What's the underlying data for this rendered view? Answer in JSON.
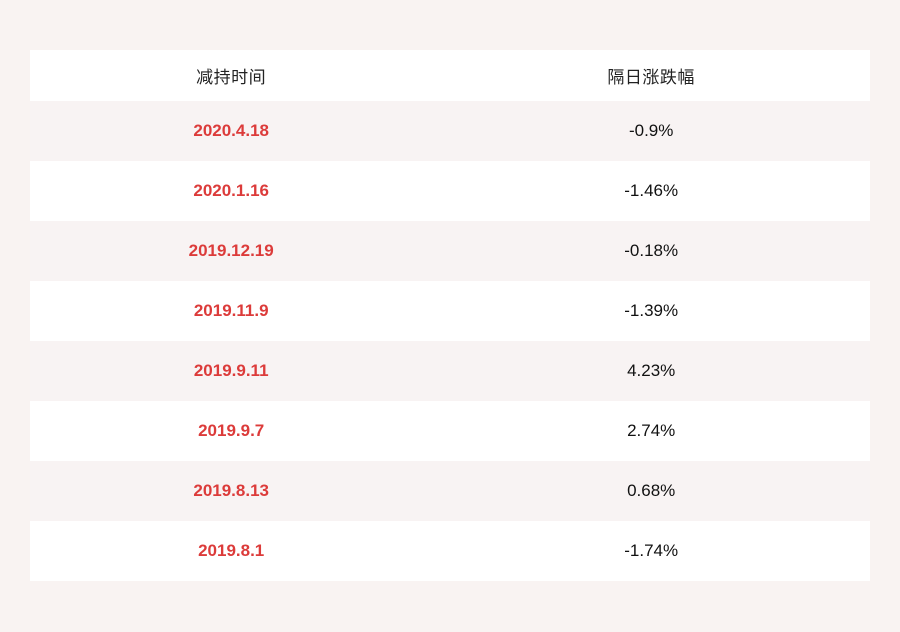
{
  "page": {
    "background": "#f9f3f2"
  },
  "table": {
    "columns": [
      {
        "key": "date",
        "label": "减持时间"
      },
      {
        "key": "change",
        "label": "隔日涨跌幅"
      }
    ],
    "rows": [
      {
        "date": "2020.4.18",
        "change": "-0.9%"
      },
      {
        "date": "2020.1.16",
        "change": "-1.46%"
      },
      {
        "date": "2019.12.19",
        "change": "-0.18%"
      },
      {
        "date": "2019.11.9",
        "change": "-1.39%"
      },
      {
        "date": "2019.9.11",
        "change": "4.23%"
      },
      {
        "date": "2019.9.7",
        "change": "2.74%"
      },
      {
        "date": "2019.8.13",
        "change": "0.68%"
      },
      {
        "date": "2019.8.1",
        "change": "-1.74%"
      }
    ],
    "colors": {
      "date_text": "#dc3b3a",
      "value_text": "#111111",
      "header_text": "#222222",
      "row_white": "#ffffff",
      "row_stripe": "#f8f3f3"
    }
  },
  "chart_data": {
    "type": "table",
    "title": "",
    "columns": [
      "减持时间",
      "隔日涨跌幅"
    ],
    "categories": [
      "2020.4.18",
      "2020.1.16",
      "2019.12.19",
      "2019.11.9",
      "2019.9.11",
      "2019.9.7",
      "2019.8.13",
      "2019.8.1"
    ],
    "values_percent": [
      -0.9,
      -1.46,
      -0.18,
      -1.39,
      4.23,
      2.74,
      0.68,
      -1.74
    ],
    "layout": {
      "grid": false,
      "striped_rows": true,
      "header_background": "#ffffff",
      "date_column_color": "#dc3b3a"
    }
  }
}
